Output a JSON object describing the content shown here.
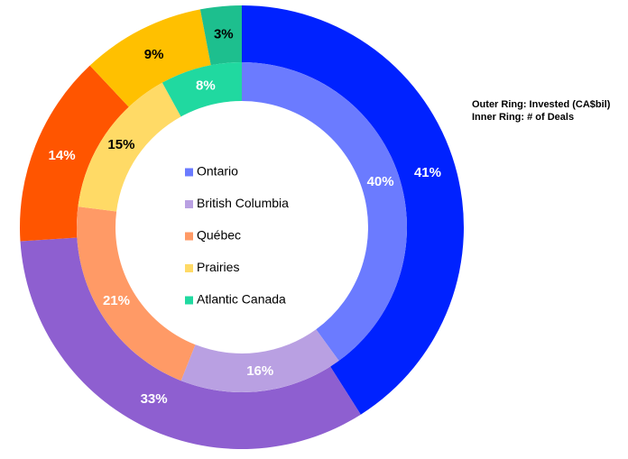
{
  "chart_data": {
    "type": "nested-donut",
    "categories": [
      "Ontario",
      "British Columbia",
      "Québec",
      "Prairies",
      "Atlantic Canada"
    ],
    "series": [
      {
        "name": "Outer Ring: Invested (CA$bil)",
        "ring": "outer",
        "values": [
          41,
          33,
          14,
          9,
          3
        ],
        "value_labels": [
          "41%",
          "33%",
          "14%",
          "9%",
          "3%"
        ],
        "colors": [
          "#0022ff",
          "#8e5fd0",
          "#ff5500",
          "#ffc000",
          "#1dbf8e"
        ],
        "label_colors": [
          "#ffffff",
          "#ffffff",
          "#ffffff",
          "#000000",
          "#000000"
        ]
      },
      {
        "name": "Inner Ring: # of Deals",
        "ring": "inner",
        "values": [
          40,
          16,
          21,
          15,
          8
        ],
        "value_labels": [
          "40%",
          "16%",
          "21%",
          "15%",
          "8%"
        ],
        "colors": [
          "#6b7bff",
          "#b9a0e2",
          "#ff9a66",
          "#ffda66",
          "#20d9a0"
        ],
        "label_colors": [
          "#ffffff",
          "#ffffff",
          "#ffffff",
          "#000000",
          "#ffffff"
        ]
      }
    ],
    "legend": "center"
  }
}
